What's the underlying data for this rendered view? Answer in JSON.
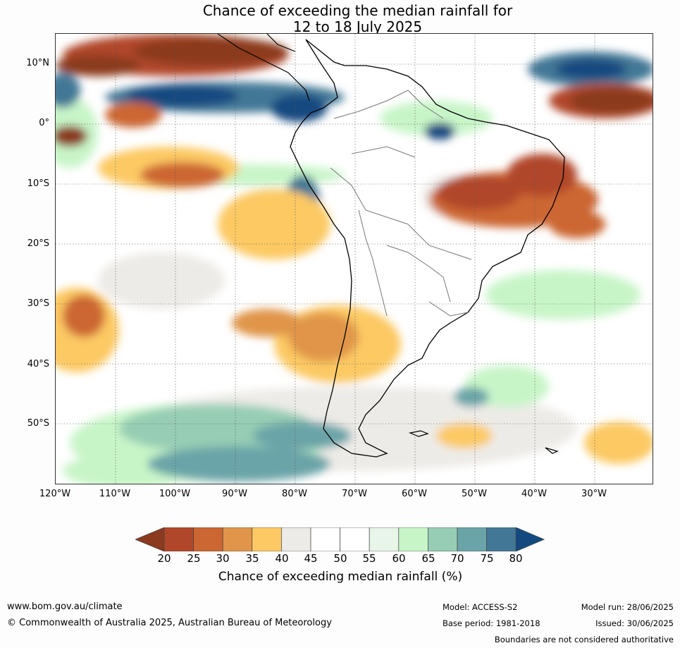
{
  "title": {
    "line1": "Chance of exceeding the median rainfall for",
    "line2": "12 to 18 July 2025"
  },
  "map": {
    "lat_labels": [
      "10°N",
      "0°",
      "10°S",
      "20°S",
      "30°S",
      "40°S",
      "50°S"
    ],
    "lon_labels": [
      "120°W",
      "110°W",
      "100°W",
      "90°W",
      "80°W",
      "70°W",
      "60°W",
      "50°W",
      "40°W",
      "30°W"
    ]
  },
  "colorbar": {
    "ticks": [
      "20",
      "25",
      "30",
      "35",
      "40",
      "45",
      "50",
      "55",
      "60",
      "65",
      "70",
      "75",
      "80"
    ],
    "colors": [
      "#8b3a1f",
      "#b1472a",
      "#cc6633",
      "#e0954a",
      "#fcc964",
      "#edebe7",
      "#ffffff",
      "#ffffff",
      "#e8f5e9",
      "#c8f5c8",
      "#96cdb4",
      "#6aa4a8",
      "#427896",
      "#124a80"
    ],
    "label": "Chance of exceeding median rainfall (%)"
  },
  "footer": {
    "website": "www.bom.gov.au/climate",
    "copyright": "© Commonwealth of Australia 2025, Australian Bureau of Meteorology",
    "model": "Model: ACCESS-S2",
    "base_period": "Base period: 1981-2018",
    "model_run": "Model run: 28/06/2025",
    "issued": "Issued: 30/06/2025",
    "disclaimer": "Boundaries are not considered authoritative"
  }
}
